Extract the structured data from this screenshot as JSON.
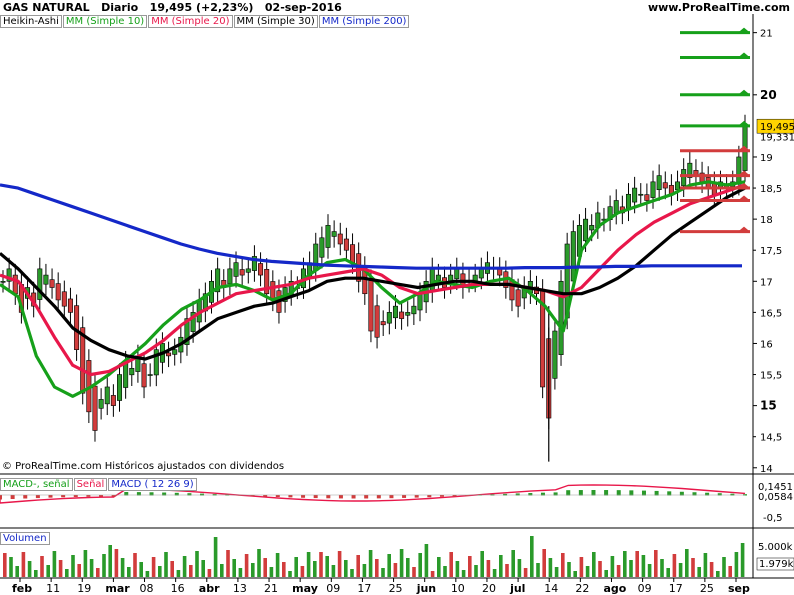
{
  "header": {
    "instrument": "GAS NATURAL",
    "period": "Diario",
    "last_price": "19,495 (+2,23%)",
    "date": "02-sep-2016",
    "site": "www.ProRealTime.com"
  },
  "legend": {
    "heikin": "Heikin-Ashi",
    "mm10": "MM (Simple 10)",
    "mm20": "MM (Simple 20)",
    "mm30": "MM (Simple 30)",
    "mm200": "MM (Simple 200)"
  },
  "footer": {
    "credit": "© ProRealTime.com  Históricos ajustados con dividendos"
  },
  "macd_panel": {
    "label1": "MACD-, señal",
    "label2": "Señal",
    "label3": "MACD ( 12 26 9)",
    "value_signal": "0,1451",
    "value_macd": "0,0584",
    "tick_neg": "-0,5"
  },
  "volume_panel": {
    "label": "Volumen",
    "tick_top": "5.000k",
    "value": "1.979k"
  },
  "price_axis": {
    "ticks_bold": [
      "21",
      "20",
      "19",
      "18",
      "17",
      "16",
      "15",
      "14"
    ],
    "ticks_small": [
      "18,5",
      "17,5",
      "16,5",
      "15,5",
      "14,5"
    ],
    "last_label": "19,495",
    "prev_label": "19,331"
  },
  "colors": {
    "up": "#2a9a2a",
    "down": "#d23c3c",
    "mm10": "#16a01a",
    "mm20": "#e8174a",
    "mm30": "#000000",
    "mm200": "#1428c8",
    "last_bg": "#ffd400"
  },
  "chart_data": {
    "type": "candlestick",
    "title": "GAS NATURAL Diario",
    "y_range": [
      13.9,
      21.3
    ],
    "x_labels": [
      {
        "text": "feb",
        "bold": true
      },
      {
        "text": "11",
        "bold": false
      },
      {
        "text": "19",
        "bold": false
      },
      {
        "text": "mar",
        "bold": true
      },
      {
        "text": "08",
        "bold": false
      },
      {
        "text": "16",
        "bold": false
      },
      {
        "text": "abr",
        "bold": true
      },
      {
        "text": "13",
        "bold": false
      },
      {
        "text": "21",
        "bold": false
      },
      {
        "text": "may",
        "bold": true
      },
      {
        "text": "09",
        "bold": false
      },
      {
        "text": "17",
        "bold": false
      },
      {
        "text": "25",
        "bold": false
      },
      {
        "text": "jun",
        "bold": true
      },
      {
        "text": "10",
        "bold": false
      },
      {
        "text": "20",
        "bold": false
      },
      {
        "text": "jul",
        "bold": true
      },
      {
        "text": "14",
        "bold": false
      },
      {
        "text": "22",
        "bold": false
      },
      {
        "text": "ago",
        "bold": true
      },
      {
        "text": "09",
        "bold": false
      },
      {
        "text": "17",
        "bold": false
      },
      {
        "text": "25",
        "bold": false
      },
      {
        "text": "sep",
        "bold": true
      }
    ],
    "series": [
      {
        "name": "MM (Simple 10)",
        "values": [
          16.95,
          16.75,
          15.8,
          15.3,
          15.15,
          15.3,
          15.5,
          15.75,
          16.0,
          16.3,
          16.55,
          16.7,
          16.9,
          16.95,
          16.85,
          16.7,
          16.8,
          17.1,
          17.3,
          17.35,
          17.2,
          16.9,
          16.65,
          16.8,
          17.0,
          16.95,
          16.9,
          17.0,
          17.05,
          16.85,
          16.6,
          16.2,
          17.5,
          17.9,
          18.1,
          18.2,
          18.3,
          18.4,
          18.55,
          18.6,
          18.55,
          18.6
        ]
      },
      {
        "name": "MM (Simple 20)",
        "values": [
          17.1,
          17.0,
          16.6,
          16.1,
          15.65,
          15.5,
          15.55,
          15.7,
          15.85,
          16.05,
          16.3,
          16.5,
          16.65,
          16.8,
          16.85,
          16.9,
          16.95,
          17.05,
          17.1,
          17.15,
          17.2,
          17.1,
          16.9,
          16.8,
          16.85,
          16.9,
          16.95,
          16.95,
          16.95,
          16.9,
          16.85,
          16.75,
          16.9,
          17.2,
          17.5,
          17.75,
          17.95,
          18.1,
          18.25,
          18.35,
          18.45,
          18.55
        ]
      },
      {
        "name": "MM (Simple 30)",
        "values": [
          17.45,
          17.2,
          16.9,
          16.6,
          16.25,
          16.05,
          15.9,
          15.8,
          15.75,
          15.85,
          16.0,
          16.2,
          16.4,
          16.5,
          16.6,
          16.65,
          16.75,
          16.85,
          17.0,
          17.05,
          17.05,
          17.0,
          16.95,
          16.9,
          16.95,
          17.0,
          17.0,
          16.95,
          16.95,
          16.9,
          16.85,
          16.8,
          16.8,
          16.9,
          17.05,
          17.25,
          17.5,
          17.75,
          17.95,
          18.15,
          18.35,
          18.5
        ]
      },
      {
        "name": "MM (Simple 200)",
        "values": [
          18.55,
          18.5,
          18.4,
          18.3,
          18.2,
          18.1,
          18.0,
          17.9,
          17.8,
          17.7,
          17.6,
          17.52,
          17.45,
          17.4,
          17.35,
          17.32,
          17.3,
          17.28,
          17.26,
          17.25,
          17.24,
          17.23,
          17.22,
          17.21,
          17.21,
          17.21,
          17.21,
          17.21,
          17.21,
          17.22,
          17.22,
          17.22,
          17.23,
          17.23,
          17.24,
          17.24,
          17.25,
          17.25,
          17.25,
          17.25,
          17.25,
          17.25
        ]
      }
    ],
    "closes": [
      17.0,
      17.2,
      16.8,
      16.5,
      16.9,
      16.6,
      17.2,
      17.1,
      16.9,
      16.7,
      16.6,
      16.5,
      15.9,
      15.2,
      14.9,
      14.6,
      15.1,
      15.3,
      15.0,
      15.5,
      15.7,
      15.6,
      15.8,
      15.3,
      15.5,
      15.9,
      16.0,
      15.8,
      15.9,
      16.1,
      16.4,
      16.5,
      16.7,
      16.8,
      17.0,
      17.2,
      16.9,
      17.2,
      17.3,
      17.1,
      17.2,
      17.4,
      17.1,
      16.8,
      16.7,
      16.5,
      16.9,
      17.0,
      16.9,
      17.2,
      17.3,
      17.6,
      17.7,
      17.9,
      17.8,
      17.6,
      17.5,
      17.3,
      17.0,
      16.8,
      16.2,
      16.1,
      16.3,
      16.5,
      16.6,
      16.4,
      16.5,
      16.6,
      16.8,
      17.0,
      17.2,
      17.1,
      16.9,
      17.1,
      17.2,
      16.9,
      17.0,
      17.1,
      17.2,
      17.3,
      17.2,
      17.1,
      16.9,
      16.7,
      16.6,
      16.9,
      17.0,
      16.8,
      15.3,
      14.8,
      16.2,
      17.0,
      17.6,
      17.8,
      17.9,
      18.0,
      17.9,
      18.1,
      18.0,
      18.2,
      18.3,
      18.1,
      18.4,
      18.5,
      18.4,
      18.3,
      18.6,
      18.7,
      18.5,
      18.4,
      18.6,
      18.8,
      18.9,
      18.7,
      18.6,
      18.5,
      18.4,
      18.6,
      18.5,
      18.6,
      19.0,
      19.5
    ],
    "resistance_levels": [
      21.0,
      20.6,
      20.0,
      19.5,
      19.1,
      18.7,
      18.5,
      18.3,
      17.8
    ],
    "macd": {
      "signal_label": "0,1451",
      "macd_label": "0,0584",
      "tick": "-0,5"
    },
    "volume": {
      "top_tick": "5.000k",
      "last": "1.979k"
    }
  }
}
